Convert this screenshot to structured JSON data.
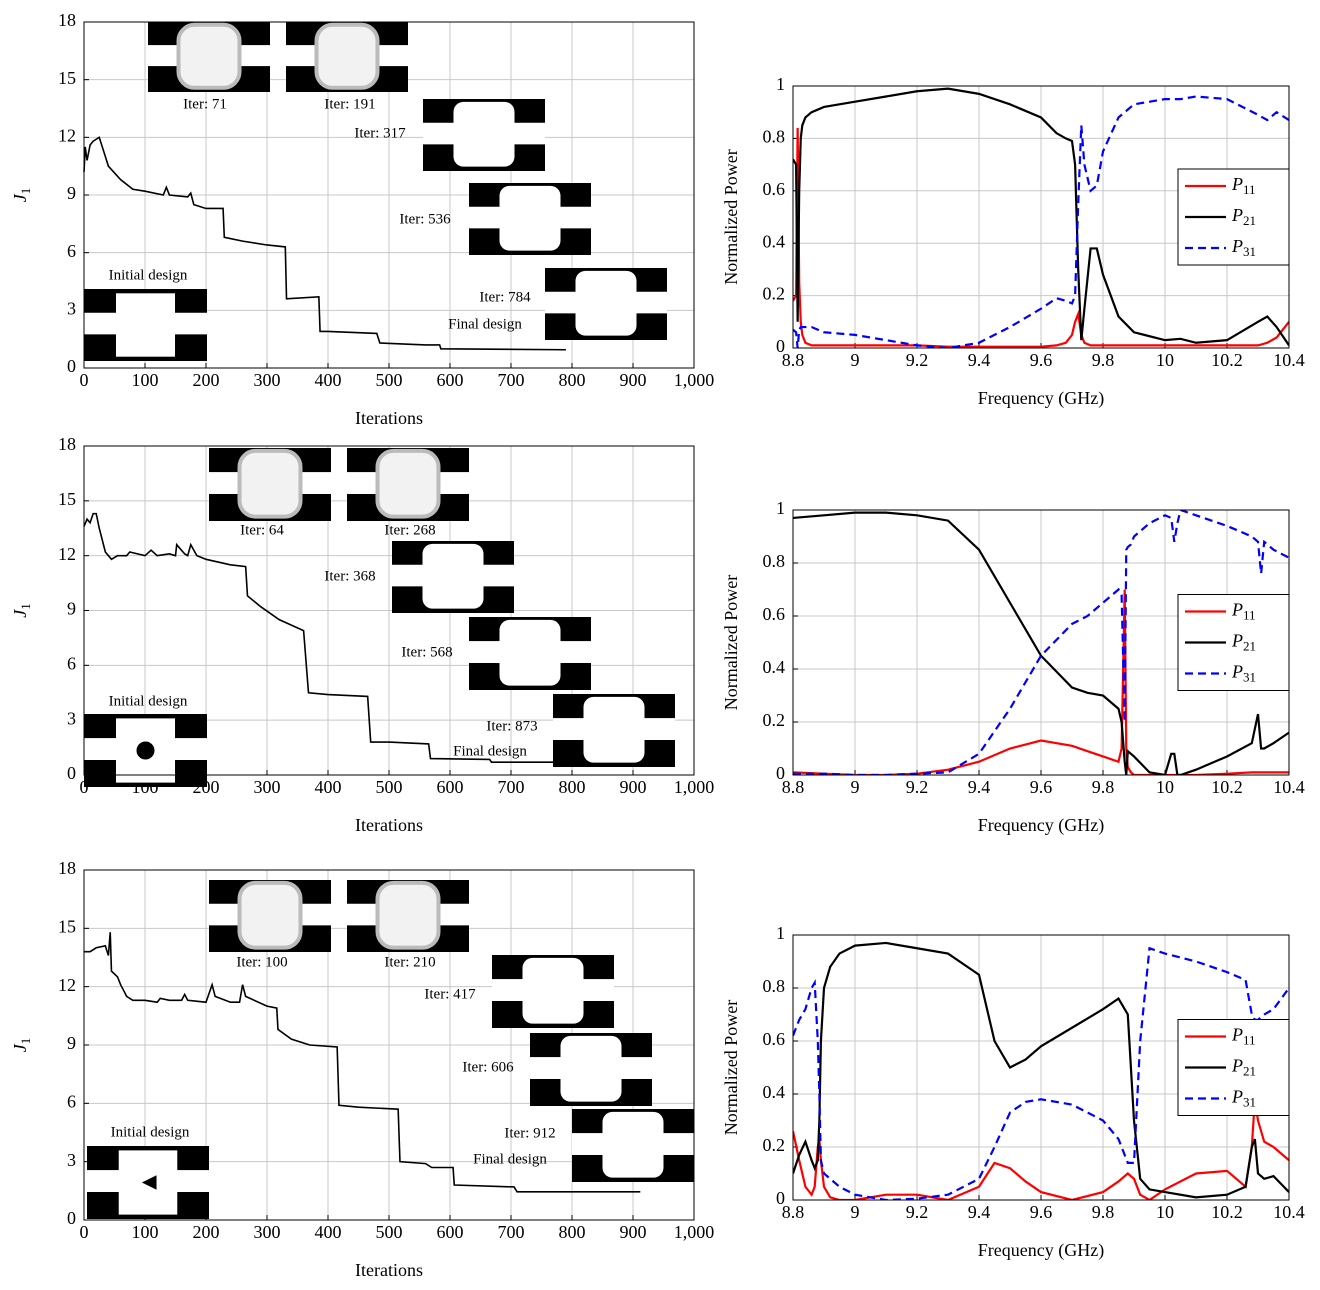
{
  "chart_data": [
    {
      "type": "line",
      "xlabel": "Iterations",
      "ylabel": "J1",
      "color": "#000000",
      "grid": true,
      "xlim": [
        0,
        1000
      ],
      "xticks": [
        0,
        100,
        200,
        300,
        400,
        500,
        600,
        700,
        800,
        900,
        {
          "value": 1000,
          "label": "1,000"
        }
      ],
      "ylim": [
        0,
        18
      ],
      "yticks": [
        0,
        3,
        6,
        9,
        12,
        15,
        18
      ],
      "x": [
        0,
        2,
        5,
        10,
        15,
        20,
        25,
        30,
        40,
        60,
        80,
        100,
        130,
        135,
        140,
        170,
        175,
        180,
        200,
        228,
        230,
        260,
        300,
        330,
        332,
        385,
        387,
        400,
        480,
        485,
        560,
        583,
        585,
        790
      ],
      "values": [
        10.2,
        11.5,
        10.8,
        11.6,
        11.8,
        11.9,
        12.0,
        11.5,
        10.5,
        9.8,
        9.3,
        9.2,
        9.0,
        9.4,
        9.0,
        8.9,
        9.1,
        8.5,
        8.3,
        8.3,
        6.8,
        6.6,
        6.4,
        6.3,
        3.6,
        3.7,
        1.9,
        1.9,
        1.8,
        1.3,
        1.2,
        1.2,
        1.0,
        0.95
      ],
      "annotations": [
        "Iter: 71",
        "Iter: 191",
        "Iter: 317",
        "Iter: 536",
        "Iter: 784",
        "Initial design",
        "Final design"
      ]
    },
    {
      "type": "multiline",
      "xlabel": "Frequency (GHz)",
      "ylabel": "Normalized Power",
      "grid": true,
      "legend": "center right",
      "xlim": [
        8.8,
        10.4
      ],
      "xticks": [
        8.8,
        9,
        9.2,
        9.4,
        9.6,
        9.8,
        10,
        10.2,
        10.4
      ],
      "ylim": [
        0,
        1
      ],
      "yticks": [
        0,
        0.2,
        0.4,
        0.6,
        0.8,
        1
      ],
      "x": [
        8.8,
        8.81,
        8.815,
        8.82,
        8.825,
        8.83,
        8.84,
        8.86,
        8.9,
        9.0,
        9.1,
        9.2,
        9.3,
        9.4,
        9.5,
        9.6,
        9.65,
        9.68,
        9.7,
        9.71,
        9.72,
        9.73,
        9.74,
        9.76,
        9.78,
        9.8,
        9.85,
        9.9,
        10.0,
        10.05,
        10.1,
        10.2,
        10.3,
        10.33,
        10.36,
        10.4
      ],
      "series": [
        {
          "name": "P11",
          "color": "#ff0000",
          "line_style": "solid",
          "values": [
            0.18,
            0.2,
            0.84,
            0.25,
            0.1,
            0.05,
            0.02,
            0.01,
            0.01,
            0.01,
            0.01,
            0.01,
            0.005,
            0.005,
            0.005,
            0.005,
            0.01,
            0.02,
            0.05,
            0.1,
            0.13,
            0.05,
            0.02,
            0.01,
            0.01,
            0.01,
            0.01,
            0.01,
            0.01,
            0.01,
            0.01,
            0.01,
            0.01,
            0.02,
            0.04,
            0.1
          ]
        },
        {
          "name": "P21",
          "color": "#000000",
          "line_style": "solid",
          "values": [
            0.72,
            0.7,
            0.1,
            0.6,
            0.8,
            0.85,
            0.88,
            0.9,
            0.92,
            0.94,
            0.96,
            0.98,
            0.99,
            0.97,
            0.93,
            0.88,
            0.82,
            0.8,
            0.79,
            0.7,
            0.3,
            0.03,
            0.15,
            0.38,
            0.38,
            0.28,
            0.12,
            0.06,
            0.03,
            0.035,
            0.02,
            0.03,
            0.1,
            0.12,
            0.08,
            0.01
          ]
        },
        {
          "name": "P31",
          "color": "#0000ff",
          "line_style": "dashed",
          "values": [
            0.07,
            0.06,
            0.0,
            0.07,
            0.08,
            0.08,
            0.08,
            0.08,
            0.06,
            0.05,
            0.03,
            0.01,
            0.0,
            0.02,
            0.08,
            0.15,
            0.19,
            0.18,
            0.17,
            0.2,
            0.55,
            0.85,
            0.7,
            0.6,
            0.62,
            0.75,
            0.88,
            0.93,
            0.95,
            0.95,
            0.96,
            0.95,
            0.89,
            0.87,
            0.9,
            0.87
          ]
        }
      ]
    },
    {
      "type": "line",
      "xlabel": "Iterations",
      "ylabel": "J1",
      "color": "#000000",
      "grid": true,
      "xlim": [
        0,
        1000
      ],
      "xticks": [
        0,
        100,
        200,
        300,
        400,
        500,
        600,
        700,
        800,
        900,
        {
          "value": 1000,
          "label": "1,000"
        }
      ],
      "ylim": [
        0,
        18
      ],
      "yticks": [
        0,
        3,
        6,
        9,
        12,
        15,
        18
      ],
      "x": [
        0,
        5,
        10,
        15,
        20,
        25,
        35,
        45,
        55,
        70,
        75,
        100,
        110,
        120,
        140,
        150,
        152,
        165,
        170,
        175,
        185,
        200,
        240,
        265,
        268,
        290,
        320,
        360,
        368,
        400,
        465,
        470,
        500,
        565,
        568,
        665,
        668,
        873
      ],
      "values": [
        13.6,
        14.0,
        13.8,
        14.3,
        14.3,
        13.5,
        12.2,
        11.8,
        12.0,
        12.0,
        12.2,
        12.0,
        12.3,
        12.0,
        12.1,
        12.0,
        12.6,
        12.1,
        12.0,
        12.6,
        12.0,
        11.8,
        11.5,
        11.4,
        9.8,
        9.2,
        8.5,
        7.9,
        4.5,
        4.4,
        4.3,
        1.8,
        1.8,
        1.7,
        0.9,
        0.85,
        0.7,
        0.7
      ],
      "annotations": [
        "Iter: 64",
        "Iter: 268",
        "Iter: 368",
        "Iter: 568",
        "Iter: 873",
        "Initial design",
        "Final design"
      ]
    },
    {
      "type": "multiline",
      "xlabel": "Frequency (GHz)",
      "ylabel": "Normalized Power",
      "grid": true,
      "legend": "center right",
      "xlim": [
        8.8,
        10.4
      ],
      "xticks": [
        8.8,
        9,
        9.2,
        9.4,
        9.6,
        9.8,
        10,
        10.2,
        10.4
      ],
      "ylim": [
        0,
        1
      ],
      "yticks": [
        0,
        0.2,
        0.4,
        0.6,
        0.8,
        1
      ],
      "x": [
        8.8,
        8.9,
        9.0,
        9.1,
        9.2,
        9.3,
        9.4,
        9.5,
        9.6,
        9.7,
        9.75,
        9.8,
        9.85,
        9.86,
        9.87,
        9.875,
        9.88,
        9.89,
        9.9,
        9.95,
        10.0,
        10.02,
        10.03,
        10.04,
        10.05,
        10.1,
        10.2,
        10.28,
        10.3,
        10.31,
        10.32,
        10.35,
        10.4
      ],
      "series": [
        {
          "name": "P11",
          "color": "#ff0000",
          "line_style": "solid",
          "values": [
            0.01,
            0.005,
            0.0,
            0.0,
            0.005,
            0.02,
            0.05,
            0.1,
            0.13,
            0.11,
            0.09,
            0.07,
            0.05,
            0.1,
            0.7,
            0.1,
            0.03,
            0.01,
            0.0,
            0.0,
            0.0,
            0.0,
            0.0,
            0.0,
            0.0,
            0.0,
            0.005,
            0.01,
            0.01,
            0.01,
            0.01,
            0.01,
            0.01
          ]
        },
        {
          "name": "P21",
          "color": "#000000",
          "line_style": "solid",
          "values": [
            0.97,
            0.98,
            0.99,
            0.99,
            0.98,
            0.96,
            0.85,
            0.65,
            0.45,
            0.33,
            0.31,
            0.3,
            0.25,
            0.2,
            0.05,
            0.0,
            0.09,
            0.08,
            0.07,
            0.01,
            0.0,
            0.08,
            0.08,
            0.0,
            0.0,
            0.02,
            0.07,
            0.12,
            0.23,
            0.1,
            0.1,
            0.12,
            0.16
          ]
        },
        {
          "name": "P31",
          "color": "#0000ff",
          "line_style": "dashed",
          "values": [
            0.005,
            0.005,
            0.0,
            0.0,
            0.005,
            0.01,
            0.08,
            0.25,
            0.45,
            0.57,
            0.6,
            0.65,
            0.7,
            0.68,
            0.2,
            0.85,
            0.86,
            0.87,
            0.9,
            0.95,
            0.98,
            0.97,
            0.88,
            0.95,
            1.0,
            0.98,
            0.94,
            0.9,
            0.88,
            0.76,
            0.88,
            0.85,
            0.82
          ]
        }
      ]
    },
    {
      "type": "line",
      "xlabel": "Iterations",
      "ylabel": "J1",
      "color": "#000000",
      "grid": true,
      "xlim": [
        0,
        1000
      ],
      "xticks": [
        0,
        100,
        200,
        300,
        400,
        500,
        600,
        700,
        800,
        900,
        {
          "value": 1000,
          "label": "1,000"
        }
      ],
      "ylim": [
        0,
        18
      ],
      "yticks": [
        0,
        3,
        6,
        9,
        12,
        15,
        18
      ],
      "x": [
        0,
        10,
        20,
        35,
        40,
        43,
        45,
        55,
        60,
        65,
        70,
        80,
        100,
        120,
        125,
        140,
        160,
        165,
        170,
        200,
        210,
        215,
        240,
        255,
        260,
        265,
        300,
        316,
        318,
        340,
        370,
        415,
        418,
        450,
        515,
        518,
        560,
        570,
        605,
        607,
        705,
        710,
        912
      ],
      "values": [
        13.8,
        13.8,
        14.0,
        14.1,
        13.6,
        14.8,
        12.8,
        12.5,
        12.1,
        11.8,
        11.5,
        11.3,
        11.3,
        11.2,
        11.4,
        11.3,
        11.3,
        11.6,
        11.3,
        11.2,
        12.1,
        11.5,
        11.2,
        11.2,
        12.1,
        11.5,
        11.0,
        10.9,
        9.8,
        9.3,
        9.0,
        8.9,
        5.9,
        5.8,
        5.7,
        3.0,
        2.9,
        2.7,
        2.7,
        1.8,
        1.7,
        1.45,
        1.45
      ],
      "annotations": [
        "Iter: 100",
        "Iter: 210",
        "Iter: 417",
        "Iter: 606",
        "Iter: 912",
        "Initial design",
        "Final design"
      ]
    },
    {
      "type": "multiline",
      "xlabel": "Frequency (GHz)",
      "ylabel": "Normalized Power",
      "grid": true,
      "legend": "center right",
      "xlim": [
        8.8,
        10.4
      ],
      "xticks": [
        8.8,
        9,
        9.2,
        9.4,
        9.6,
        9.8,
        10,
        10.2,
        10.4
      ],
      "ylim": [
        0,
        1
      ],
      "yticks": [
        0,
        0.2,
        0.4,
        0.6,
        0.8,
        1
      ],
      "x": [
        8.8,
        8.82,
        8.84,
        8.86,
        8.87,
        8.88,
        8.885,
        8.89,
        8.9,
        8.92,
        8.95,
        9.0,
        9.1,
        9.2,
        9.3,
        9.4,
        9.45,
        9.5,
        9.55,
        9.6,
        9.7,
        9.8,
        9.85,
        9.88,
        9.9,
        9.92,
        9.95,
        10.0,
        10.1,
        10.2,
        10.26,
        10.28,
        10.29,
        10.3,
        10.32,
        10.35,
        10.4
      ],
      "series": [
        {
          "name": "P11",
          "color": "#ff0000",
          "line_style": "solid",
          "values": [
            0.26,
            0.15,
            0.05,
            0.02,
            0.05,
            0.2,
            0.23,
            0.15,
            0.05,
            0.01,
            0.0,
            0.0,
            0.02,
            0.02,
            0.0,
            0.05,
            0.14,
            0.12,
            0.07,
            0.03,
            0.0,
            0.03,
            0.07,
            0.1,
            0.08,
            0.02,
            0.0,
            0.04,
            0.1,
            0.11,
            0.05,
            0.2,
            0.38,
            0.3,
            0.22,
            0.2,
            0.15
          ]
        },
        {
          "name": "P21",
          "color": "#000000",
          "line_style": "solid",
          "values": [
            0.1,
            0.17,
            0.22,
            0.15,
            0.12,
            0.15,
            0.3,
            0.6,
            0.8,
            0.88,
            0.93,
            0.96,
            0.97,
            0.95,
            0.93,
            0.85,
            0.6,
            0.5,
            0.53,
            0.58,
            0.65,
            0.72,
            0.76,
            0.7,
            0.3,
            0.08,
            0.04,
            0.03,
            0.01,
            0.02,
            0.05,
            0.2,
            0.23,
            0.1,
            0.08,
            0.09,
            0.03
          ]
        },
        {
          "name": "P31",
          "color": "#0000ff",
          "line_style": "dashed",
          "values": [
            0.62,
            0.68,
            0.72,
            0.8,
            0.82,
            0.6,
            0.4,
            0.15,
            0.1,
            0.08,
            0.05,
            0.02,
            0.0,
            0.005,
            0.02,
            0.08,
            0.2,
            0.33,
            0.37,
            0.38,
            0.36,
            0.3,
            0.23,
            0.14,
            0.14,
            0.6,
            0.95,
            0.93,
            0.9,
            0.86,
            0.83,
            0.7,
            0.68,
            0.68,
            0.7,
            0.72,
            0.8
          ]
        }
      ]
    }
  ]
}
